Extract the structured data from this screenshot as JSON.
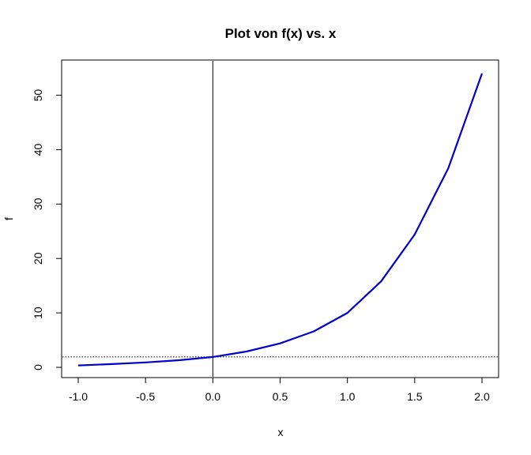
{
  "chart_data": {
    "type": "line",
    "title": "Plot von f(x) vs. x",
    "xlabel": "x",
    "ylabel": "f",
    "xlim": [
      -1.0,
      2.0
    ],
    "ylim": [
      0,
      54
    ],
    "x_ticks": [
      "-1.0",
      "-0.5",
      "0.0",
      "0.5",
      "1.0",
      "1.5",
      "2.0"
    ],
    "y_ticks": [
      "0",
      "10",
      "20",
      "30",
      "40",
      "50"
    ],
    "grid": false,
    "series": [
      {
        "color": "#0000cc",
        "x": [
          -1.0,
          -0.75,
          -0.5,
          -0.25,
          0.0,
          0.25,
          0.5,
          0.75,
          1.0,
          1.25,
          1.5,
          1.75,
          2.0
        ],
        "y": [
          0.35,
          0.6,
          0.9,
          1.3,
          1.9,
          2.9,
          4.4,
          6.6,
          10.0,
          15.8,
          24.4,
          36.6,
          54.0
        ]
      }
    ],
    "reference_lines": {
      "vertical_x": 0.0,
      "horizontal_y": 1.9
    }
  }
}
